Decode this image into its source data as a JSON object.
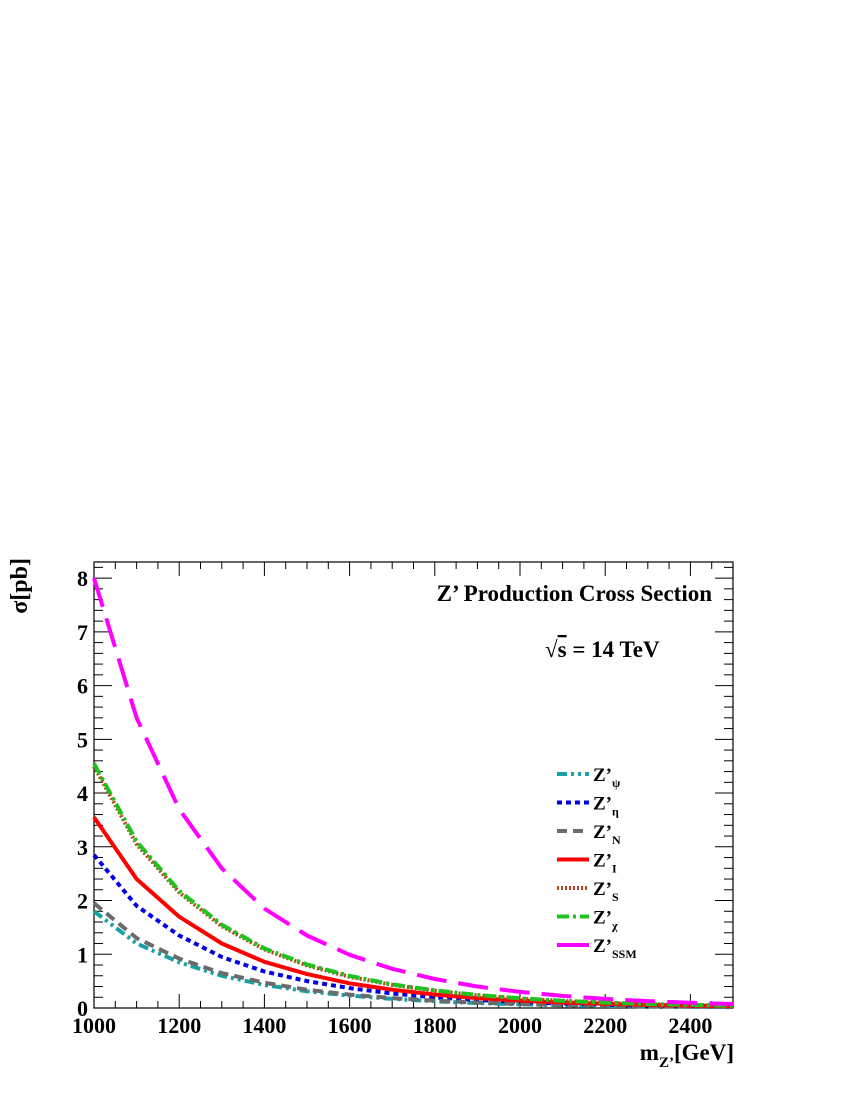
{
  "chart_data": {
    "type": "line",
    "title": "Z’ Production Cross Section",
    "subtitle": {
      "sqrt": "√",
      "s": "s",
      "rest": " = 14 TeV"
    },
    "xlabel": {
      "main": "m",
      "sub": "Z’",
      "rest": "[GeV]"
    },
    "ylabel": "σ[pb]",
    "xlim": [
      1000,
      2500
    ],
    "ylim": [
      0,
      8.3
    ],
    "xticks": [
      1000,
      1200,
      1400,
      1600,
      1800,
      2000,
      2200,
      2400
    ],
    "yticks": [
      0,
      1,
      2,
      3,
      4,
      5,
      6,
      7,
      8
    ],
    "legend_position": "middle-right",
    "x": [
      1000,
      1100,
      1200,
      1300,
      1400,
      1500,
      1600,
      1700,
      1800,
      1900,
      2000,
      2100,
      2200,
      2300,
      2400,
      2500
    ],
    "series": [
      {
        "name": "Z’",
        "sub": "ψ",
        "color": "#17a0a6",
        "style": "dash-dot-dot",
        "values": [
          1.8,
          1.2,
          0.85,
          0.6,
          0.43,
          0.31,
          0.23,
          0.17,
          0.125,
          0.092,
          0.068,
          0.051,
          0.038,
          0.029,
          0.022,
          0.017
        ]
      },
      {
        "name": "Z’",
        "sub": "η",
        "color": "#0000e6",
        "style": "dotted",
        "values": [
          2.85,
          1.9,
          1.35,
          0.95,
          0.68,
          0.5,
          0.37,
          0.27,
          0.2,
          0.15,
          0.11,
          0.083,
          0.062,
          0.047,
          0.036,
          0.027
        ]
      },
      {
        "name": "Z’",
        "sub": "N",
        "color": "#6b6b6b",
        "style": "dashed-short",
        "values": [
          1.95,
          1.3,
          0.92,
          0.65,
          0.47,
          0.34,
          0.25,
          0.185,
          0.137,
          0.101,
          0.075,
          0.056,
          0.042,
          0.032,
          0.024,
          0.018
        ]
      },
      {
        "name": "Z’",
        "sub": "I",
        "color": "#ff0000",
        "style": "solid",
        "values": [
          3.55,
          2.4,
          1.7,
          1.2,
          0.86,
          0.63,
          0.46,
          0.34,
          0.25,
          0.185,
          0.138,
          0.103,
          0.077,
          0.058,
          0.044,
          0.033
        ]
      },
      {
        "name": "Z’",
        "sub": "S",
        "color": "#b5461a",
        "style": "fine-dotted",
        "values": [
          4.5,
          3.05,
          2.15,
          1.52,
          1.09,
          0.79,
          0.58,
          0.43,
          0.32,
          0.235,
          0.175,
          0.13,
          0.097,
          0.073,
          0.055,
          0.042
        ]
      },
      {
        "name": "Z’",
        "sub": "χ",
        "color": "#1fc21f",
        "style": "dash-dot",
        "values": [
          4.55,
          3.1,
          2.18,
          1.55,
          1.11,
          0.81,
          0.6,
          0.44,
          0.33,
          0.242,
          0.18,
          0.134,
          0.1,
          0.075,
          0.057,
          0.043
        ]
      },
      {
        "name": "Z’",
        "sub": "SSM",
        "color": "#ff00ff",
        "style": "long-dash",
        "values": [
          8.0,
          5.4,
          3.7,
          2.6,
          1.85,
          1.35,
          0.99,
          0.73,
          0.54,
          0.4,
          0.3,
          0.225,
          0.17,
          0.128,
          0.097,
          0.074
        ]
      }
    ]
  }
}
